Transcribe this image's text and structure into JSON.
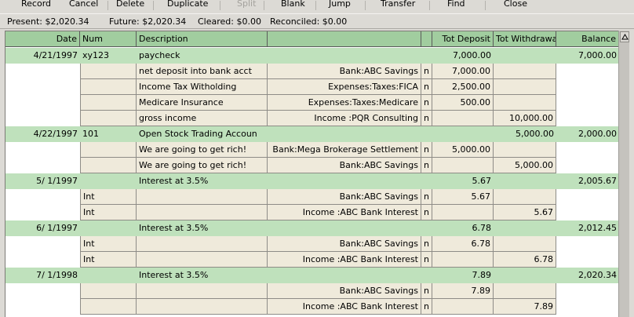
{
  "toolbar": {
    "buttons": [
      {
        "label": "Record",
        "enabled": true
      },
      {
        "label": "Cancel",
        "enabled": true
      },
      {
        "label": "Delete",
        "enabled": true
      },
      {
        "label": "Duplicate",
        "enabled": true
      },
      {
        "label": "Split",
        "enabled": false
      },
      {
        "label": "Blank",
        "enabled": true
      },
      {
        "label": "Jump",
        "enabled": true
      },
      {
        "label": "Transfer",
        "enabled": true
      },
      {
        "label": "Find",
        "enabled": true
      },
      {
        "label": "Close",
        "enabled": true
      }
    ]
  },
  "summary": {
    "present": "Present: $2,020.34",
    "future": "Future: $2,020.34",
    "cleared": "Cleared: $0.00",
    "reconciled": "Reconciled: $0.00"
  },
  "register": {
    "headers": {
      "date": "Date",
      "num": "Num",
      "description": "Description",
      "tot_deposit": "Tot Deposit",
      "tot_withdrawal": "Tot Withdrawal",
      "balance": "Balance"
    },
    "rows": [
      {
        "type": "txn",
        "date": "4/21/1997",
        "num": "xy123",
        "desc": "paycheck",
        "deposit": "7,000.00",
        "withdrawal": "",
        "balance": "7,000.00"
      },
      {
        "type": "split",
        "action": "",
        "memo": "net deposit into bank acct",
        "account": "Bank:ABC Savings",
        "r": "n",
        "deposit": "7,000.00",
        "withdrawal": ""
      },
      {
        "type": "split",
        "action": "",
        "memo": "Income Tax Witholding",
        "account": "Expenses:Taxes:FICA",
        "r": "n",
        "deposit": "2,500.00",
        "withdrawal": ""
      },
      {
        "type": "split",
        "action": "",
        "memo": "Medicare Insurance",
        "account": "Expenses:Taxes:Medicare",
        "r": "n",
        "deposit": "500.00",
        "withdrawal": ""
      },
      {
        "type": "split",
        "action": "",
        "memo": "gross income",
        "account": "Income :PQR Consulting",
        "r": "n",
        "deposit": "",
        "withdrawal": "10,000.00"
      },
      {
        "type": "txn",
        "date": "4/22/1997",
        "num": "101",
        "desc": "Open Stock Trading Accoun",
        "deposit": "",
        "withdrawal": "5,000.00",
        "balance": "2,000.00"
      },
      {
        "type": "split",
        "action": "",
        "memo": "We are going to get rich!",
        "account": "Bank:Mega Brokerage Settlement",
        "r": "n",
        "deposit": "5,000.00",
        "withdrawal": ""
      },
      {
        "type": "split",
        "action": "",
        "memo": "We are going to get rich!",
        "account": "Bank:ABC Savings",
        "r": "n",
        "deposit": "",
        "withdrawal": "5,000.00"
      },
      {
        "type": "txn",
        "date": "5/ 1/1997",
        "num": "",
        "desc": "Interest at 3.5%",
        "deposit": "5.67",
        "withdrawal": "",
        "balance": "2,005.67"
      },
      {
        "type": "split",
        "action": "Int",
        "memo": "",
        "account": "Bank:ABC Savings",
        "r": "n",
        "deposit": "5.67",
        "withdrawal": ""
      },
      {
        "type": "split",
        "action": "Int",
        "memo": "",
        "account": "Income :ABC Bank Interest",
        "r": "n",
        "deposit": "",
        "withdrawal": "5.67"
      },
      {
        "type": "txn",
        "date": "6/ 1/1997",
        "num": "",
        "desc": "Interest at 3.5%",
        "deposit": "6.78",
        "withdrawal": "",
        "balance": "2,012.45"
      },
      {
        "type": "split",
        "action": "Int",
        "memo": "",
        "account": "Bank:ABC Savings",
        "r": "n",
        "deposit": "6.78",
        "withdrawal": ""
      },
      {
        "type": "split",
        "action": "Int",
        "memo": "",
        "account": "Income :ABC Bank Interest",
        "r": "n",
        "deposit": "",
        "withdrawal": "6.78"
      },
      {
        "type": "txn",
        "date": "7/ 1/1998",
        "num": "",
        "desc": "Interest at 3.5%",
        "deposit": "7.89",
        "withdrawal": "",
        "balance": "2,020.34"
      },
      {
        "type": "split",
        "action": "",
        "memo": "",
        "account": "Bank:ABC Savings",
        "r": "n",
        "deposit": "7.89",
        "withdrawal": ""
      },
      {
        "type": "split",
        "action": "",
        "memo": "",
        "account": "Income :ABC Bank Interest",
        "r": "n",
        "deposit": "",
        "withdrawal": "7.89"
      }
    ]
  },
  "icons": {
    "scroll_up": "arrow-up-icon"
  },
  "colors": {
    "header_bg": "#a1cd9f",
    "txn_row_bg": "#bfe1bc",
    "split_row_bg": "#efeadb",
    "disabled_text": "#a4a29d"
  }
}
